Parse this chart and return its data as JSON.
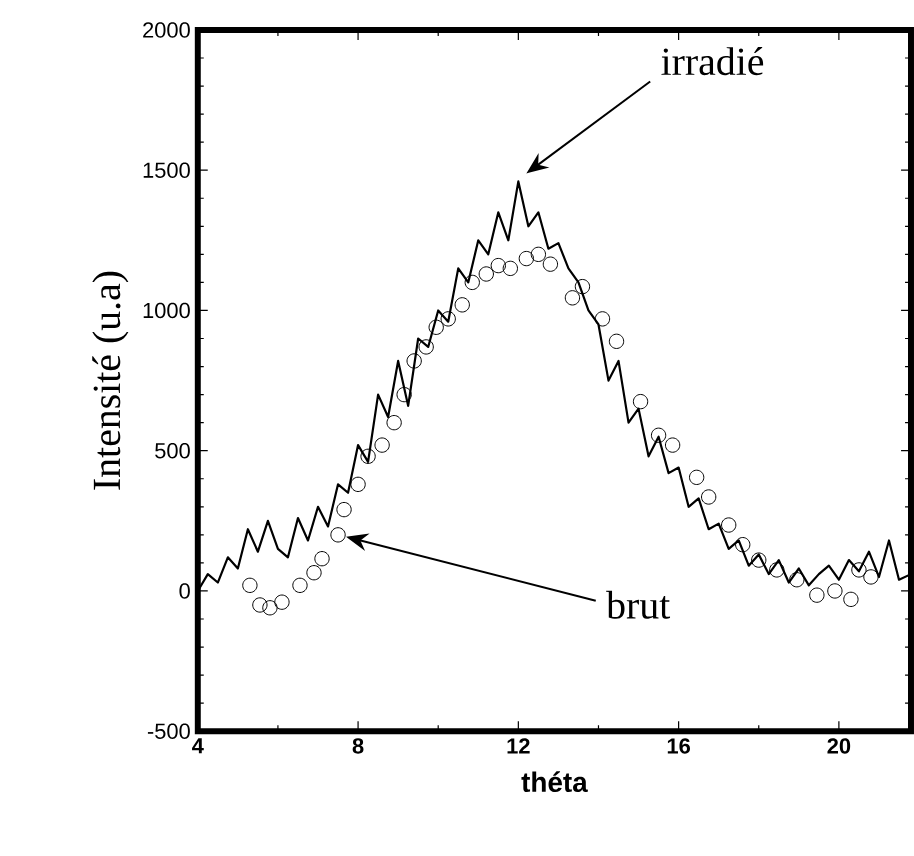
{
  "chart_data": {
    "type": "line",
    "xlabel": "théta",
    "ylabel": "Intensité (u.a)",
    "xlim": [
      4,
      21.8
    ],
    "ylim": [
      -500,
      2000
    ],
    "xticks": [
      4,
      8,
      12,
      16,
      20
    ],
    "yticks": [
      -500,
      0,
      500,
      1000,
      1500,
      2000
    ],
    "grid": false,
    "series": [
      {
        "name": "irradié",
        "color": "#000000",
        "marker": "none",
        "x": [
          4.0,
          4.25,
          4.5,
          4.75,
          5.0,
          5.25,
          5.5,
          5.75,
          6.0,
          6.25,
          6.5,
          6.75,
          7.0,
          7.25,
          7.5,
          7.75,
          8.0,
          8.25,
          8.5,
          8.75,
          9.0,
          9.25,
          9.5,
          9.75,
          10.0,
          10.25,
          10.5,
          10.75,
          11.0,
          11.25,
          11.5,
          11.75,
          12.0,
          12.25,
          12.5,
          12.75,
          13.0,
          13.25,
          13.5,
          13.75,
          14.0,
          14.25,
          14.5,
          14.75,
          15.0,
          15.25,
          15.5,
          15.75,
          16.0,
          16.25,
          16.5,
          16.75,
          17.0,
          17.25,
          17.5,
          17.75,
          18.0,
          18.25,
          18.5,
          18.75,
          19.0,
          19.25,
          19.5,
          19.75,
          20.0,
          20.25,
          20.5,
          20.75,
          21.0,
          21.25,
          21.5,
          21.8
        ],
        "values": [
          0,
          60,
          30,
          120,
          80,
          220,
          140,
          250,
          150,
          120,
          260,
          180,
          300,
          230,
          380,
          350,
          520,
          460,
          700,
          620,
          820,
          660,
          900,
          870,
          1000,
          960,
          1150,
          1100,
          1250,
          1200,
          1350,
          1250,
          1460,
          1300,
          1350,
          1220,
          1240,
          1150,
          1100,
          1000,
          950,
          750,
          820,
          600,
          650,
          480,
          550,
          420,
          440,
          300,
          330,
          220,
          240,
          150,
          180,
          90,
          130,
          60,
          110,
          30,
          80,
          20,
          60,
          90,
          40,
          110,
          70,
          140,
          50,
          180,
          40,
          60
        ]
      },
      {
        "name": "brut",
        "type": "scatter",
        "color": "#000000",
        "marker": "circle",
        "x": [
          5.3,
          5.55,
          5.8,
          6.1,
          6.55,
          6.9,
          7.1,
          7.5,
          7.65,
          8.0,
          8.25,
          8.6,
          8.9,
          9.15,
          9.4,
          9.7,
          9.95,
          10.25,
          10.6,
          10.85,
          11.2,
          11.5,
          11.8,
          12.2,
          12.5,
          12.8,
          13.35,
          13.6,
          14.1,
          14.45,
          15.05,
          15.5,
          15.85,
          16.45,
          16.75,
          17.25,
          17.6,
          18.0,
          18.45,
          18.95,
          19.45,
          19.9,
          20.3,
          20.5,
          20.8
        ],
        "values": [
          20,
          -50,
          -60,
          -40,
          20,
          65,
          115,
          200,
          290,
          380,
          480,
          520,
          600,
          700,
          820,
          870,
          940,
          970,
          1020,
          1100,
          1130,
          1160,
          1150,
          1185,
          1200,
          1165,
          1045,
          1085,
          970,
          890,
          675,
          555,
          520,
          405,
          335,
          235,
          165,
          110,
          75,
          40,
          -15,
          0,
          -30,
          75,
          50
        ]
      }
    ]
  }
}
